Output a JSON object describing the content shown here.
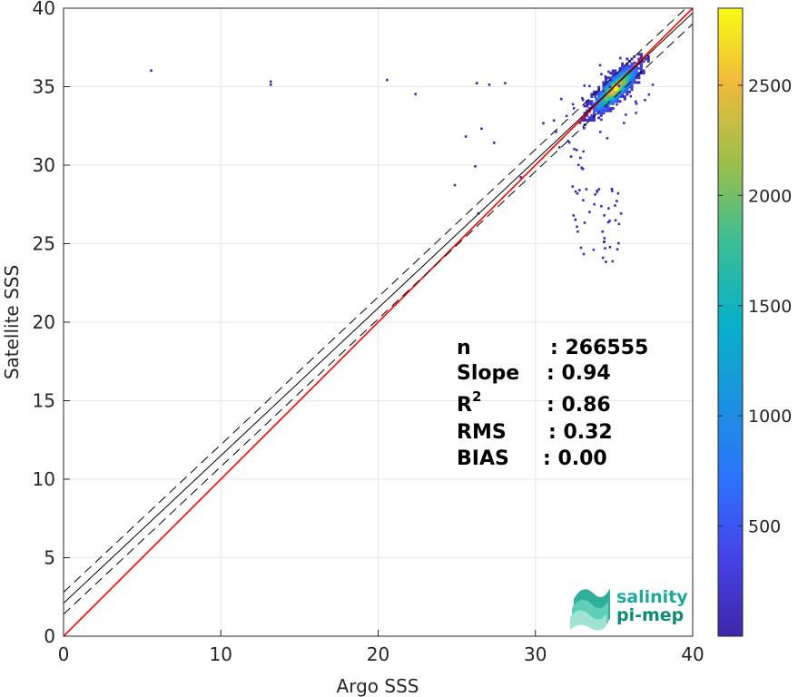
{
  "chart_data": {
    "type": "heatmap",
    "xlabel": "Argo SSS",
    "ylabel": "Satellite SSS",
    "xlim": [
      0,
      40
    ],
    "ylim": [
      0,
      40
    ],
    "x_ticks": [
      "0",
      "10",
      "20",
      "30",
      "40"
    ],
    "y_ticks": [
      "0",
      "5",
      "10",
      "15",
      "20",
      "25",
      "30",
      "35",
      "40"
    ],
    "grid": true,
    "colormap": "parula",
    "colorbar": {
      "range": [
        0,
        2850
      ],
      "ticks": [
        "500",
        "1000",
        "1500",
        "2000",
        "2500"
      ]
    },
    "density_peak": {
      "x": 35,
      "y": 34.8
    },
    "lines": [
      {
        "role": "identity",
        "color": "#ff0000",
        "style": "solid",
        "slope": 1.0,
        "intercept": 0
      },
      {
        "role": "regression",
        "color": "#000000",
        "style": "solid",
        "slope": 0.94,
        "intercept": 2.1
      },
      {
        "role": "regression-plus",
        "color": "#000000",
        "style": "dashed",
        "slope": 0.94,
        "intercept": 2.8
      },
      {
        "role": "regression-minus",
        "color": "#000000",
        "style": "dashed",
        "slope": 0.94,
        "intercept": 1.4
      }
    ],
    "stats": [
      {
        "label": "n",
        "value": ": 266555"
      },
      {
        "label": "Slope",
        "value": ": 0.94"
      },
      {
        "label": "R",
        "sup": "2",
        "value": ": 0.86"
      },
      {
        "label": "RMS",
        "value": ": 0.32"
      },
      {
        "label": "BIAS",
        "value": ": 0.00"
      }
    ],
    "outliers": [
      [
        5.5,
        36.1
      ],
      [
        13.1,
        35.4
      ],
      [
        13.1,
        35.2
      ],
      [
        20.5,
        35.5
      ],
      [
        22.3,
        34.6
      ],
      [
        24.8,
        28.8
      ],
      [
        26.3,
        27.0
      ],
      [
        25.5,
        31.9
      ],
      [
        26.2,
        35.3
      ],
      [
        27.0,
        35.2
      ],
      [
        28.0,
        35.3
      ],
      [
        26.5,
        32.4
      ],
      [
        27.3,
        31.5
      ],
      [
        26.1,
        30.0
      ],
      [
        29.0,
        29.3
      ]
    ]
  },
  "logo": {
    "line1": "salinity",
    "line2": "pi-mep",
    "colors": {
      "text": "#1ea89a",
      "text2": "#0e8a7a",
      "shape": "#4ec9b5"
    }
  },
  "colors": {
    "axis": "#262626",
    "grid": "#e6e6e6",
    "identity": "#ff0000"
  }
}
